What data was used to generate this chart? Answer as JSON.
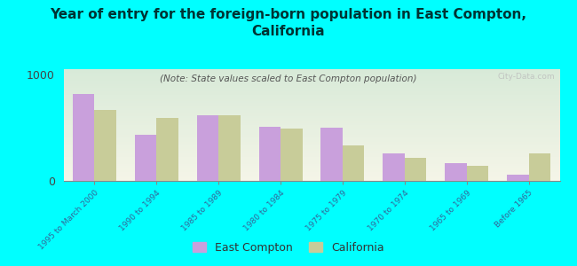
{
  "title": "Year of entry for the foreign-born population in East Compton,\nCalifornia",
  "subtitle": "(Note: State values scaled to East Compton population)",
  "categories": [
    "1995 to March 2000",
    "1990 to 1994",
    "1985 to 1989",
    "1980 to 1984",
    "1975 to 1979",
    "1970 to 1974",
    "1965 to 1969",
    "Before 1965"
  ],
  "east_compton": [
    820,
    430,
    620,
    510,
    500,
    260,
    170,
    55
  ],
  "california": [
    670,
    590,
    620,
    490,
    330,
    215,
    145,
    255
  ],
  "ec_color": "#c9a0dc",
  "ca_color": "#c8cc99",
  "background_color": "#00ffff",
  "ylim": [
    0,
    1050
  ],
  "yticks": [
    0,
    1000
  ],
  "bar_width": 0.35,
  "watermark": "City-Data.com",
  "legend_ec": "East Compton",
  "legend_ca": "California",
  "title_fontsize": 11,
  "subtitle_fontsize": 7.5,
  "tick_label_fontsize": 6.5,
  "ytick_fontsize": 9
}
